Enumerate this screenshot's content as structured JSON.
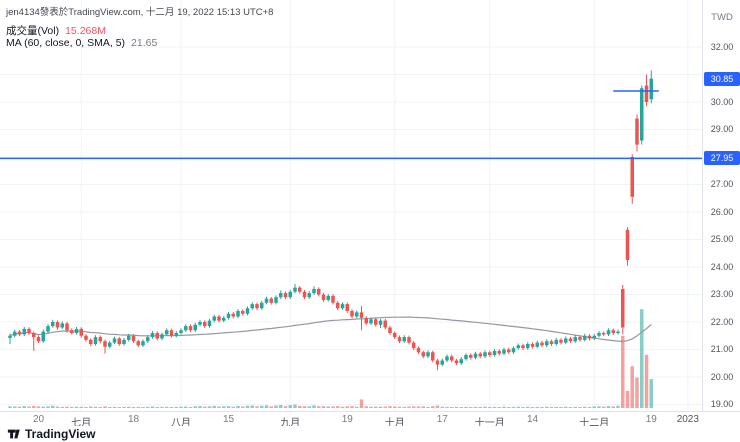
{
  "attribution": "jen4134發表於TradingView.com, 十二月 19, 2022 15:13 UTC+8",
  "legend": {
    "volume_label": "成交量(Vol)",
    "volume_value": "15.268M",
    "ma_label": "MA (60, close, 0, SMA, 5)",
    "ma_value": "21.65"
  },
  "footer": {
    "brand": "TradingView"
  },
  "colors": {
    "up": "#26a69a",
    "down": "#ef5350",
    "volume_up": "rgba(38,166,154,0.55)",
    "volume_down": "rgba(239,83,80,0.55)",
    "accent_blue": "#2962ff",
    "ma_line": "#9598a1",
    "grid": "#f0f3fa",
    "volume_value_color": "#f7525f",
    "ma_value_color": "#787b86"
  },
  "chart_data": {
    "type": "candlestick",
    "currency": "TWD",
    "last_price": 30.85,
    "last_volume": "15.268M",
    "ma_value": 21.65,
    "ylim": [
      18.85,
      33.7
    ],
    "y_axis_ticks": [
      32,
      31,
      30,
      29,
      28,
      27,
      26,
      25,
      24,
      23,
      22,
      21,
      20,
      19
    ],
    "badges": [
      {
        "label": "30.85",
        "price": 30.85
      },
      {
        "label": "27.95",
        "price": 27.95
      }
    ],
    "annotations": {
      "horizontal_price_line": 27.95,
      "segment": {
        "price": 30.4,
        "from_index": 127,
        "to_index": 136.6
      }
    },
    "time_labels": [
      {
        "label": "20",
        "index": 6,
        "major": false
      },
      {
        "label": "七月",
        "index": 15,
        "major": true
      },
      {
        "label": "18",
        "index": 26,
        "major": false
      },
      {
        "label": "八月",
        "index": 36,
        "major": true
      },
      {
        "label": "15",
        "index": 46,
        "major": false
      },
      {
        "label": "九月",
        "index": 59,
        "major": true
      },
      {
        "label": "19",
        "index": 71,
        "major": false
      },
      {
        "label": "十月",
        "index": 81,
        "major": true
      },
      {
        "label": "17",
        "index": 91,
        "major": false
      },
      {
        "label": "十一月",
        "index": 101,
        "major": true
      },
      {
        "label": "14",
        "index": 110,
        "major": false
      },
      {
        "label": "十二月",
        "index": 123,
        "major": true
      },
      {
        "label": "19",
        "index": 135,
        "major": false
      },
      {
        "label": "2023",
        "index": 142.7,
        "major": true
      }
    ],
    "columns": [
      "open",
      "high",
      "low",
      "close",
      "volume_millions"
    ],
    "candles": [
      [
        21.42,
        21.58,
        21.2,
        21.5,
        0.9
      ],
      [
        21.5,
        21.72,
        21.44,
        21.65,
        0.8
      ],
      [
        21.65,
        21.71,
        21.48,
        21.55,
        0.7
      ],
      [
        21.55,
        21.82,
        21.49,
        21.75,
        1.0
      ],
      [
        21.75,
        21.81,
        21.53,
        21.6,
        0.8
      ],
      [
        21.6,
        21.66,
        20.95,
        21.45,
        1.1
      ],
      [
        21.45,
        21.51,
        21.23,
        21.3,
        0.9
      ],
      [
        21.3,
        21.72,
        21.24,
        21.65,
        0.7
      ],
      [
        21.65,
        21.93,
        21.58,
        21.85,
        0.9
      ],
      [
        21.85,
        22.08,
        21.79,
        22.0,
        1.2
      ],
      [
        22.0,
        22.06,
        21.72,
        21.8,
        0.8
      ],
      [
        21.8,
        22.03,
        21.74,
        21.95,
        0.6
      ],
      [
        21.95,
        22.01,
        21.62,
        21.7,
        0.7
      ],
      [
        21.7,
        21.77,
        21.54,
        21.6,
        0.6
      ],
      [
        21.6,
        21.82,
        21.54,
        21.75,
        0.7
      ],
      [
        21.75,
        21.81,
        21.43,
        21.5,
        0.6
      ],
      [
        21.5,
        21.56,
        21.28,
        21.35,
        0.5
      ],
      [
        21.35,
        21.41,
        21.12,
        21.2,
        0.8
      ],
      [
        21.2,
        21.52,
        21.14,
        21.45,
        0.6
      ],
      [
        21.45,
        21.51,
        21.22,
        21.3,
        0.5
      ],
      [
        21.3,
        21.36,
        20.85,
        21.1,
        0.9
      ],
      [
        21.1,
        21.32,
        21.04,
        21.25,
        0.5
      ],
      [
        21.25,
        21.47,
        21.19,
        21.4,
        0.6
      ],
      [
        21.4,
        21.46,
        21.13,
        21.2,
        0.5
      ],
      [
        21.2,
        21.42,
        21.14,
        21.35,
        0.6
      ],
      [
        21.35,
        21.57,
        21.29,
        21.5,
        0.7
      ],
      [
        21.5,
        21.56,
        21.23,
        21.3,
        0.5
      ],
      [
        21.3,
        21.36,
        21.08,
        21.15,
        0.6
      ],
      [
        21.15,
        21.37,
        21.09,
        21.3,
        0.5
      ],
      [
        21.3,
        21.52,
        21.24,
        21.45,
        0.6
      ],
      [
        21.45,
        21.67,
        21.39,
        21.6,
        0.8
      ],
      [
        21.6,
        21.66,
        21.33,
        21.4,
        0.5
      ],
      [
        21.4,
        21.62,
        21.34,
        21.55,
        0.6
      ],
      [
        21.55,
        21.77,
        21.49,
        21.7,
        0.7
      ],
      [
        21.7,
        21.76,
        21.43,
        21.5,
        0.5
      ],
      [
        21.5,
        21.67,
        21.44,
        21.6,
        0.6
      ],
      [
        21.6,
        21.77,
        21.54,
        21.7,
        0.7
      ],
      [
        21.7,
        21.92,
        21.64,
        21.85,
        0.8
      ],
      [
        21.85,
        21.91,
        21.63,
        21.7,
        0.6
      ],
      [
        21.7,
        21.97,
        21.64,
        21.9,
        0.9
      ],
      [
        21.9,
        22.07,
        21.84,
        22.0,
        1.0
      ],
      [
        22.0,
        22.06,
        21.78,
        21.85,
        0.7
      ],
      [
        21.85,
        22.12,
        21.79,
        22.05,
        0.9
      ],
      [
        22.05,
        22.27,
        21.99,
        22.2,
        1.1
      ],
      [
        22.2,
        22.26,
        21.98,
        22.05,
        0.8
      ],
      [
        22.05,
        22.22,
        21.99,
        22.15,
        0.9
      ],
      [
        22.15,
        22.37,
        22.09,
        22.3,
        1.0
      ],
      [
        22.3,
        22.36,
        22.13,
        22.2,
        0.7
      ],
      [
        22.2,
        22.47,
        22.14,
        22.4,
        1.1
      ],
      [
        22.4,
        22.46,
        22.23,
        22.3,
        0.8
      ],
      [
        22.3,
        22.57,
        22.24,
        22.5,
        1.2
      ],
      [
        22.5,
        22.72,
        22.44,
        22.65,
        1.3
      ],
      [
        22.65,
        22.71,
        22.43,
        22.5,
        0.9
      ],
      [
        22.5,
        22.77,
        22.44,
        22.7,
        1.2
      ],
      [
        22.7,
        22.92,
        22.64,
        22.85,
        1.4
      ],
      [
        22.85,
        22.91,
        22.63,
        22.7,
        0.9
      ],
      [
        22.7,
        22.97,
        22.64,
        22.9,
        1.3
      ],
      [
        22.9,
        23.15,
        22.84,
        23.05,
        1.6
      ],
      [
        23.05,
        23.11,
        22.83,
        22.9,
        1.0
      ],
      [
        22.9,
        23.17,
        22.84,
        23.1,
        1.5
      ],
      [
        23.1,
        23.38,
        23.04,
        23.25,
        1.8
      ],
      [
        23.25,
        23.31,
        23.03,
        23.1,
        1.1
      ],
      [
        23.1,
        23.16,
        22.83,
        22.9,
        1.0
      ],
      [
        22.9,
        23.12,
        22.84,
        23.05,
        0.9
      ],
      [
        23.05,
        23.3,
        22.99,
        23.2,
        1.4
      ],
      [
        23.2,
        23.26,
        22.93,
        23.0,
        0.9
      ],
      [
        23.0,
        23.06,
        22.73,
        22.8,
        1.0
      ],
      [
        22.8,
        23.02,
        22.74,
        22.95,
        0.8
      ],
      [
        22.95,
        23.01,
        22.63,
        22.7,
        0.9
      ],
      [
        22.7,
        22.76,
        22.43,
        22.5,
        1.0
      ],
      [
        22.5,
        22.72,
        22.44,
        22.65,
        0.7
      ],
      [
        22.65,
        22.71,
        22.33,
        22.4,
        0.9
      ],
      [
        22.4,
        22.46,
        22.13,
        22.2,
        1.0
      ],
      [
        22.2,
        22.42,
        22.14,
        22.35,
        0.7
      ],
      [
        22.35,
        22.58,
        21.7,
        22.15,
        4.5
      ],
      [
        22.15,
        22.21,
        21.88,
        21.95,
        0.9
      ],
      [
        21.95,
        22.17,
        21.89,
        22.1,
        0.7
      ],
      [
        22.1,
        22.16,
        21.83,
        21.9,
        0.8
      ],
      [
        21.9,
        22.12,
        21.78,
        22.05,
        0.7
      ],
      [
        22.05,
        22.11,
        21.73,
        21.8,
        0.8
      ],
      [
        21.8,
        21.86,
        21.53,
        21.6,
        1.0
      ],
      [
        21.6,
        21.66,
        21.38,
        21.45,
        0.8
      ],
      [
        21.45,
        21.51,
        21.23,
        21.3,
        0.7
      ],
      [
        21.3,
        21.52,
        21.24,
        21.45,
        0.6
      ],
      [
        21.45,
        21.51,
        21.18,
        21.25,
        0.8
      ],
      [
        21.25,
        21.31,
        20.98,
        21.05,
        0.9
      ],
      [
        21.05,
        21.11,
        20.83,
        20.9,
        0.8
      ],
      [
        20.9,
        20.96,
        20.68,
        20.75,
        0.9
      ],
      [
        20.75,
        20.97,
        20.69,
        20.9,
        0.6
      ],
      [
        20.9,
        20.96,
        20.53,
        20.6,
        1.0
      ],
      [
        20.6,
        20.66,
        20.25,
        20.45,
        1.3
      ],
      [
        20.45,
        20.67,
        20.39,
        20.6,
        0.7
      ],
      [
        20.6,
        20.82,
        20.54,
        20.75,
        0.6
      ],
      [
        20.75,
        20.81,
        20.53,
        20.6,
        0.5
      ],
      [
        20.6,
        20.66,
        20.43,
        20.5,
        0.6
      ],
      [
        20.5,
        20.72,
        20.44,
        20.65,
        0.5
      ],
      [
        20.65,
        20.87,
        20.59,
        20.8,
        0.6
      ],
      [
        20.8,
        20.86,
        20.63,
        20.7,
        0.5
      ],
      [
        20.7,
        20.92,
        20.64,
        20.85,
        0.6
      ],
      [
        20.85,
        20.91,
        20.68,
        20.75,
        0.5
      ],
      [
        20.75,
        20.97,
        20.69,
        20.9,
        0.7
      ],
      [
        20.9,
        20.96,
        20.73,
        20.8,
        0.5
      ],
      [
        20.8,
        21.02,
        20.74,
        20.95,
        0.6
      ],
      [
        20.95,
        21.01,
        20.78,
        20.85,
        0.5
      ],
      [
        20.85,
        21.07,
        20.79,
        21.0,
        0.7
      ],
      [
        21.0,
        21.06,
        20.83,
        20.9,
        0.5
      ],
      [
        20.9,
        21.12,
        20.84,
        21.05,
        0.6
      ],
      [
        21.05,
        21.22,
        20.99,
        21.15,
        0.7
      ],
      [
        21.15,
        21.21,
        20.98,
        21.05,
        0.5
      ],
      [
        21.05,
        21.27,
        20.99,
        21.2,
        0.7
      ],
      [
        21.2,
        21.26,
        21.03,
        21.1,
        0.5
      ],
      [
        21.1,
        21.32,
        21.04,
        21.25,
        0.6
      ],
      [
        21.25,
        21.31,
        21.08,
        21.15,
        0.5
      ],
      [
        21.15,
        21.37,
        21.09,
        21.3,
        0.7
      ],
      [
        21.3,
        21.36,
        21.13,
        21.2,
        0.5
      ],
      [
        21.2,
        21.42,
        21.14,
        21.35,
        0.6
      ],
      [
        21.35,
        21.41,
        21.18,
        21.25,
        0.5
      ],
      [
        21.25,
        21.47,
        21.19,
        21.4,
        0.7
      ],
      [
        21.4,
        21.46,
        21.23,
        21.3,
        0.5
      ],
      [
        21.3,
        21.52,
        21.24,
        21.45,
        0.6
      ],
      [
        21.45,
        21.51,
        21.28,
        21.35,
        0.5
      ],
      [
        21.35,
        21.57,
        21.29,
        21.5,
        0.7
      ],
      [
        21.5,
        21.56,
        21.33,
        21.4,
        0.6
      ],
      [
        21.4,
        21.57,
        21.34,
        21.5,
        0.8
      ],
      [
        21.5,
        21.67,
        21.44,
        21.6,
        0.9
      ],
      [
        21.6,
        21.66,
        21.48,
        21.55,
        0.7
      ],
      [
        21.55,
        21.77,
        21.49,
        21.7,
        1.0
      ],
      [
        21.7,
        21.76,
        21.53,
        21.6,
        0.8
      ],
      [
        21.6,
        21.72,
        21.54,
        21.65,
        1.2
      ],
      [
        23.2,
        23.35,
        21.55,
        21.8,
        38.0
      ],
      [
        25.35,
        25.45,
        24.05,
        24.25,
        9.0
      ],
      [
        28.0,
        28.1,
        26.3,
        26.55,
        22.0
      ],
      [
        29.4,
        29.55,
        28.2,
        28.45,
        16.0
      ],
      [
        28.6,
        30.6,
        28.45,
        30.5,
        52.0
      ],
      [
        30.6,
        31.0,
        29.85,
        30.0,
        28.0
      ],
      [
        30.1,
        31.15,
        29.95,
        30.85,
        15.268
      ]
    ]
  }
}
